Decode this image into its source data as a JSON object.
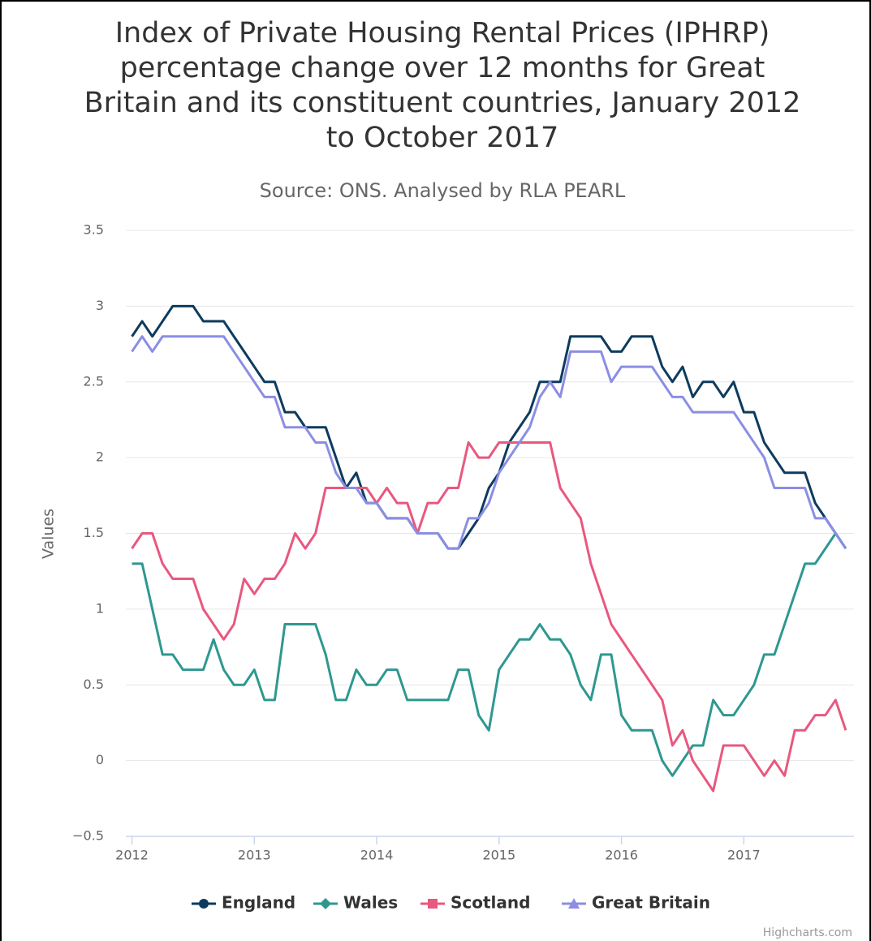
{
  "chart_data": {
    "type": "line",
    "title": "Index of Private Housing Rental Prices (IPHRP) percentage change over 12 months for Great Britain and its constituent countries, January 2012 to October 2017",
    "subtitle": "Source: ONS. Analysed by RLA PEARL",
    "y_axis_label": "Values",
    "credits": "Highcharts.com",
    "x": [
      2012,
      2012.0833,
      2012.1667,
      2012.25,
      2012.3333,
      2012.4167,
      2012.5,
      2012.5833,
      2012.6667,
      2012.75,
      2012.8333,
      2012.9167,
      2013,
      2013.0833,
      2013.1667,
      2013.25,
      2013.3333,
      2013.4167,
      2013.5,
      2013.5833,
      2013.6667,
      2013.75,
      2013.8333,
      2013.9167,
      2014,
      2014.0833,
      2014.1667,
      2014.25,
      2014.3333,
      2014.4167,
      2014.5,
      2014.5833,
      2014.6667,
      2014.75,
      2014.8333,
      2014.9167,
      2015,
      2015.0833,
      2015.1667,
      2015.25,
      2015.3333,
      2015.4167,
      2015.5,
      2015.5833,
      2015.6667,
      2015.75,
      2015.8333,
      2015.9167,
      2016,
      2016.0833,
      2016.1667,
      2016.25,
      2016.3333,
      2016.4167,
      2016.5,
      2016.5833,
      2016.6667,
      2016.75,
      2016.8333,
      2016.9167,
      2017,
      2017.0833,
      2017.1667,
      2017.25,
      2017.3333,
      2017.4167,
      2017.5,
      2017.5833,
      2017.6667,
      2017.75,
      2017.8333
    ],
    "xlim": [
      2011.95,
      2017.9
    ],
    "xticks": [
      2012,
      2013,
      2014,
      2015,
      2016,
      2017
    ],
    "ylim": [
      -0.5,
      3.5
    ],
    "yticks": [
      {
        "value": -0.5,
        "label": "−0.5"
      },
      0,
      0.5,
      1,
      1.5,
      2,
      2.5,
      3,
      3.5
    ],
    "grid": true,
    "legend": "bottom",
    "series": [
      {
        "name": "England",
        "color": "#0d3b5e",
        "values": [
          2.8,
          2.9,
          2.8,
          2.9,
          3.0,
          3.0,
          3.0,
          2.9,
          2.9,
          2.9,
          2.8,
          2.7,
          2.6,
          2.5,
          2.5,
          2.3,
          2.3,
          2.2,
          2.2,
          2.2,
          2.0,
          1.8,
          1.9,
          1.7,
          1.7,
          1.6,
          1.6,
          1.6,
          1.5,
          1.5,
          1.5,
          1.4,
          1.4,
          1.5,
          1.6,
          1.8,
          1.9,
          2.1,
          2.2,
          2.3,
          2.5,
          2.5,
          2.5,
          2.8,
          2.8,
          2.8,
          2.8,
          2.7,
          2.7,
          2.8,
          2.8,
          2.8,
          2.6,
          2.5,
          2.6,
          2.4,
          2.5,
          2.5,
          2.4,
          2.5,
          2.3,
          2.3,
          2.1,
          2.0,
          1.9,
          1.9,
          1.9,
          1.7,
          1.6,
          1.5,
          1.4
        ]
      },
      {
        "name": "Wales",
        "color": "#2e9890",
        "values": [
          1.3,
          1.3,
          1.0,
          0.7,
          0.7,
          0.6,
          0.6,
          0.6,
          0.8,
          0.6,
          0.5,
          0.5,
          0.6,
          0.4,
          0.4,
          0.9,
          0.9,
          0.9,
          0.9,
          0.7,
          0.4,
          0.4,
          0.6,
          0.5,
          0.5,
          0.6,
          0.6,
          0.4,
          0.4,
          0.4,
          0.4,
          0.4,
          0.6,
          0.6,
          0.3,
          0.2,
          0.6,
          0.7,
          0.8,
          0.8,
          0.9,
          0.8,
          0.8,
          0.7,
          0.5,
          0.4,
          0.7,
          0.7,
          0.3,
          0.2,
          0.2,
          0.2,
          0.0,
          -0.1,
          0.0,
          0.1,
          0.1,
          0.4,
          0.3,
          0.3,
          0.4,
          0.5,
          0.7,
          0.7,
          0.9,
          1.1,
          1.3,
          1.3,
          1.4,
          1.5,
          1.4
        ]
      },
      {
        "name": "Scotland",
        "color": "#e8587f",
        "values": [
          1.4,
          1.5,
          1.5,
          1.3,
          1.2,
          1.2,
          1.2,
          1.0,
          0.9,
          0.8,
          0.9,
          1.2,
          1.1,
          1.2,
          1.2,
          1.3,
          1.5,
          1.4,
          1.5,
          1.8,
          1.8,
          1.8,
          1.8,
          1.8,
          1.7,
          1.8,
          1.7,
          1.7,
          1.5,
          1.7,
          1.7,
          1.8,
          1.8,
          2.1,
          2.0,
          2.0,
          2.1,
          2.1,
          2.1,
          2.1,
          2.1,
          2.1,
          1.8,
          1.7,
          1.6,
          1.3,
          1.1,
          0.9,
          0.8,
          0.7,
          0.6,
          0.5,
          0.4,
          0.1,
          0.2,
          0.0,
          -0.1,
          -0.2,
          0.1,
          0.1,
          0.1,
          0.0,
          -0.1,
          0.0,
          -0.1,
          0.2,
          0.2,
          0.3,
          0.3,
          0.4,
          0.2
        ]
      },
      {
        "name": "Great Britain",
        "color": "#8b8ee3",
        "values": [
          2.7,
          2.8,
          2.7,
          2.8,
          2.8,
          2.8,
          2.8,
          2.8,
          2.8,
          2.8,
          2.7,
          2.6,
          2.5,
          2.4,
          2.4,
          2.2,
          2.2,
          2.2,
          2.1,
          2.1,
          1.9,
          1.8,
          1.8,
          1.7,
          1.7,
          1.6,
          1.6,
          1.6,
          1.5,
          1.5,
          1.5,
          1.4,
          1.4,
          1.6,
          1.6,
          1.7,
          1.9,
          2.0,
          2.1,
          2.2,
          2.4,
          2.5,
          2.4,
          2.7,
          2.7,
          2.7,
          2.7,
          2.5,
          2.6,
          2.6,
          2.6,
          2.6,
          2.5,
          2.4,
          2.4,
          2.3,
          2.3,
          2.3,
          2.3,
          2.3,
          2.2,
          2.1,
          2.0,
          1.8,
          1.8,
          1.8,
          1.8,
          1.6,
          1.6,
          1.5,
          1.4
        ]
      }
    ]
  }
}
